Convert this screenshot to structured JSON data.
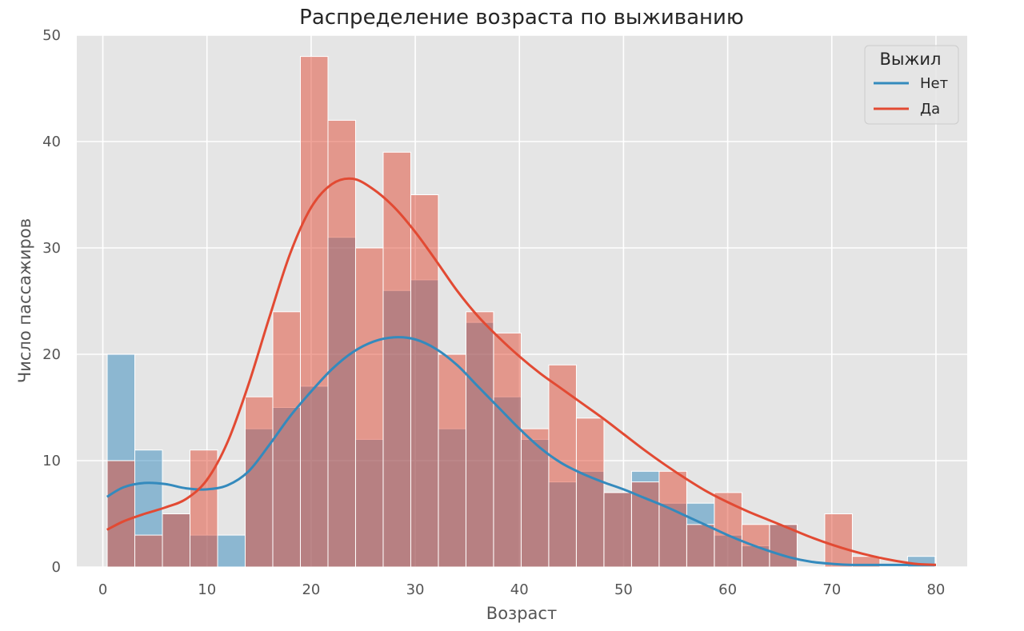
{
  "chart_data": {
    "type": "histogram",
    "title": "Распределение возраста по выживанию",
    "xlabel": "Возраст",
    "ylabel": "Число пассажиров",
    "xlim": [
      -2.5,
      83
    ],
    "ylim": [
      0,
      50
    ],
    "xticks": [
      0,
      10,
      20,
      30,
      40,
      50,
      60,
      70,
      80
    ],
    "yticks": [
      0,
      10,
      20,
      30,
      40,
      50
    ],
    "grid": true,
    "legend": {
      "title": "Выжил",
      "position": "top-right"
    },
    "bin_start": 0.42,
    "bin_width": 2.65,
    "series": [
      {
        "name": "Нет",
        "color": "#348abd",
        "values": [
          20,
          11,
          5,
          3,
          3,
          13,
          15,
          17,
          31,
          12,
          26,
          27,
          13,
          23,
          16,
          12,
          8,
          9,
          7,
          9,
          6,
          6,
          3,
          2,
          4,
          0,
          0,
          0,
          0,
          1
        ],
        "kde": [
          [
            0.4,
            6.6
          ],
          [
            2,
            7.5
          ],
          [
            4,
            7.9
          ],
          [
            6,
            7.8
          ],
          [
            8,
            7.4
          ],
          [
            10,
            7.3
          ],
          [
            12,
            7.7
          ],
          [
            14,
            9.0
          ],
          [
            16,
            11.5
          ],
          [
            18,
            14.2
          ],
          [
            20,
            16.5
          ],
          [
            22,
            18.6
          ],
          [
            24,
            20.2
          ],
          [
            26,
            21.2
          ],
          [
            28,
            21.6
          ],
          [
            30,
            21.4
          ],
          [
            32,
            20.5
          ],
          [
            34,
            19.0
          ],
          [
            36,
            17.0
          ],
          [
            38,
            15.0
          ],
          [
            40,
            13.0
          ],
          [
            42,
            11.2
          ],
          [
            44,
            9.8
          ],
          [
            46,
            8.8
          ],
          [
            48,
            8.0
          ],
          [
            50,
            7.3
          ],
          [
            52,
            6.5
          ],
          [
            54,
            5.7
          ],
          [
            56,
            4.8
          ],
          [
            58,
            3.9
          ],
          [
            60,
            3.0
          ],
          [
            62,
            2.2
          ],
          [
            64,
            1.5
          ],
          [
            66,
            0.9
          ],
          [
            68,
            0.5
          ],
          [
            70,
            0.3
          ],
          [
            72,
            0.2
          ],
          [
            76,
            0.2
          ],
          [
            80,
            0.2
          ]
        ]
      },
      {
        "name": "Да",
        "color": "#e24a33",
        "values": [
          10,
          3,
          5,
          11,
          0,
          16,
          24,
          48,
          42,
          30,
          39,
          35,
          20,
          24,
          22,
          13,
          19,
          14,
          7,
          8,
          9,
          4,
          7,
          4,
          4,
          0,
          5,
          1,
          0,
          0
        ],
        "kde": [
          [
            0.4,
            3.5
          ],
          [
            2,
            4.3
          ],
          [
            4,
            5.0
          ],
          [
            6,
            5.6
          ],
          [
            8,
            6.4
          ],
          [
            10,
            8.2
          ],
          [
            12,
            11.8
          ],
          [
            14,
            17.2
          ],
          [
            16,
            23.5
          ],
          [
            18,
            29.5
          ],
          [
            20,
            33.8
          ],
          [
            22,
            36.0
          ],
          [
            24,
            36.5
          ],
          [
            26,
            35.5
          ],
          [
            28,
            33.8
          ],
          [
            30,
            31.5
          ],
          [
            32,
            28.8
          ],
          [
            34,
            26.0
          ],
          [
            36,
            23.6
          ],
          [
            38,
            21.6
          ],
          [
            40,
            19.8
          ],
          [
            42,
            18.2
          ],
          [
            44,
            16.8
          ],
          [
            46,
            15.4
          ],
          [
            48,
            14.0
          ],
          [
            50,
            12.5
          ],
          [
            52,
            11.0
          ],
          [
            54,
            9.6
          ],
          [
            56,
            8.3
          ],
          [
            58,
            7.1
          ],
          [
            60,
            6.1
          ],
          [
            62,
            5.2
          ],
          [
            64,
            4.4
          ],
          [
            66,
            3.6
          ],
          [
            68,
            2.8
          ],
          [
            70,
            2.1
          ],
          [
            72,
            1.5
          ],
          [
            74,
            1.0
          ],
          [
            76,
            0.6
          ],
          [
            78,
            0.3
          ],
          [
            80,
            0.2
          ]
        ]
      }
    ]
  }
}
